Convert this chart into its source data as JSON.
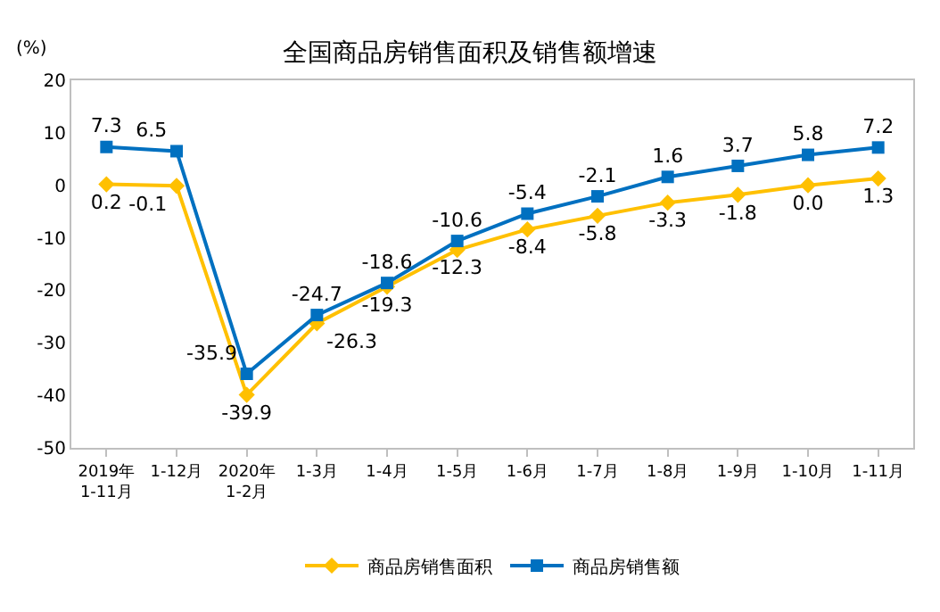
{
  "chart_data": {
    "type": "line",
    "title": "全国商品房销售面积及销售额增速",
    "ylabel": "(%)",
    "categories": [
      "2019年\n1-11月",
      "1-12月",
      "2020年\n1-2月",
      "1-3月",
      "1-4月",
      "1-5月",
      "1-6月",
      "1-7月",
      "1-8月",
      "1-9月",
      "1-10月",
      "1-11月"
    ],
    "series": [
      {
        "name": "商品房销售面积",
        "color": "#ffc000",
        "marker": "diamond",
        "values": [
          0.2,
          -0.1,
          -39.9,
          -26.3,
          -19.3,
          -12.3,
          -8.4,
          -5.8,
          -3.3,
          -1.8,
          0.0,
          1.3
        ],
        "value_labels": [
          "0.2",
          "-0.1",
          "-39.9",
          "-26.3",
          "-19.3",
          "-12.3",
          "-8.4",
          "-5.8",
          "-3.3",
          "-1.8",
          "0.0",
          "1.3"
        ]
      },
      {
        "name": "商品房销售额",
        "color": "#0070c0",
        "marker": "square",
        "values": [
          7.3,
          6.5,
          -35.9,
          -24.7,
          -18.6,
          -10.6,
          -5.4,
          -2.1,
          1.6,
          3.7,
          5.8,
          7.2
        ],
        "value_labels": [
          "7.3",
          "6.5",
          "-35.9",
          "-24.7",
          "-18.6",
          "-10.6",
          "-5.4",
          "-2.1",
          "1.6",
          "3.7",
          "5.8",
          "7.2"
        ]
      }
    ],
    "ylim": [
      -50,
      20
    ],
    "yticks": [
      -50,
      -40,
      -30,
      -20,
      -10,
      0,
      10,
      20
    ],
    "legend": "bottom"
  }
}
